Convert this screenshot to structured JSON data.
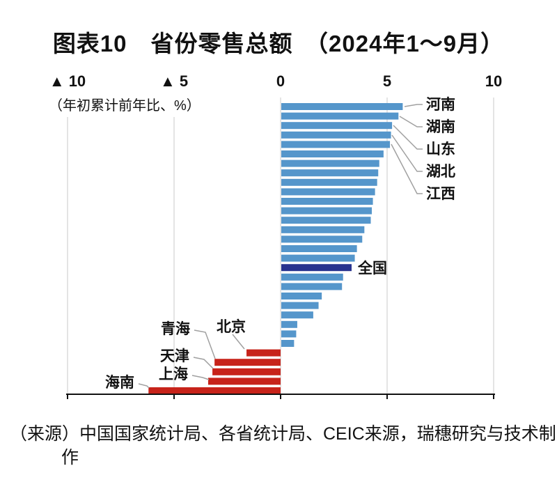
{
  "title": "图表10　省份零售总额　（2024年1～9月）",
  "subtitle": "（年初累计前年比、%）",
  "source": {
    "line1": "（来源）中国国家统计局、各省统计局、CEIC来源，瑞穗研究与技术制",
    "line2": "作"
  },
  "colors": {
    "positive": "#5596CB",
    "national": "#28338F",
    "negative": "#C7231A",
    "grid": "#C9C9C9",
    "leader": "#A0A0A0",
    "axis": "#111111"
  },
  "chart_data": {
    "type": "bar",
    "orientation": "horizontal",
    "unit": "%",
    "value_note": "年初累计前年比（▲ = 负增长）",
    "xlim": [
      -10,
      10
    ],
    "x_ticks": [
      {
        "label": "▲ 10",
        "value": -10
      },
      {
        "label": "▲ 5",
        "value": -5
      },
      {
        "label": "0",
        "value": 0
      },
      {
        "label": "5",
        "value": 5
      },
      {
        "label": "10",
        "value": 10
      }
    ],
    "grid": true,
    "bars": [
      {
        "label": "河南",
        "value": 5.7,
        "type": "province"
      },
      {
        "label": "湖南",
        "value": 5.5,
        "type": "province"
      },
      {
        "label": "山东",
        "value": 5.2,
        "type": "province"
      },
      {
        "label": "湖北",
        "value": 5.15,
        "type": "province"
      },
      {
        "label": "江西",
        "value": 5.1,
        "type": "province"
      },
      {
        "label": "",
        "value": 4.8,
        "type": "province"
      },
      {
        "label": "",
        "value": 4.6,
        "type": "province"
      },
      {
        "label": "",
        "value": 4.55,
        "type": "province"
      },
      {
        "label": "",
        "value": 4.5,
        "type": "province"
      },
      {
        "label": "",
        "value": 4.4,
        "type": "province"
      },
      {
        "label": "",
        "value": 4.3,
        "type": "province"
      },
      {
        "label": "",
        "value": 4.25,
        "type": "province"
      },
      {
        "label": "",
        "value": 4.2,
        "type": "province"
      },
      {
        "label": "",
        "value": 3.9,
        "type": "province"
      },
      {
        "label": "",
        "value": 3.8,
        "type": "province"
      },
      {
        "label": "",
        "value": 3.55,
        "type": "province"
      },
      {
        "label": "",
        "value": 3.45,
        "type": "province"
      },
      {
        "label": "全国",
        "value": 3.3,
        "type": "national"
      },
      {
        "label": "",
        "value": 2.9,
        "type": "province"
      },
      {
        "label": "",
        "value": 2.85,
        "type": "province"
      },
      {
        "label": "",
        "value": 1.9,
        "type": "province"
      },
      {
        "label": "",
        "value": 1.75,
        "type": "province"
      },
      {
        "label": "",
        "value": 1.5,
        "type": "province"
      },
      {
        "label": "",
        "value": 0.75,
        "type": "province"
      },
      {
        "label": "",
        "value": 0.7,
        "type": "province"
      },
      {
        "label": "",
        "value": 0.6,
        "type": "province"
      },
      {
        "label": "北京",
        "value": -1.6,
        "type": "province"
      },
      {
        "label": "青海",
        "value": -3.1,
        "type": "province"
      },
      {
        "label": "天津",
        "value": -3.2,
        "type": "province"
      },
      {
        "label": "上海",
        "value": -3.4,
        "type": "province"
      },
      {
        "label": "海南",
        "value": -6.2,
        "type": "province"
      }
    ]
  }
}
